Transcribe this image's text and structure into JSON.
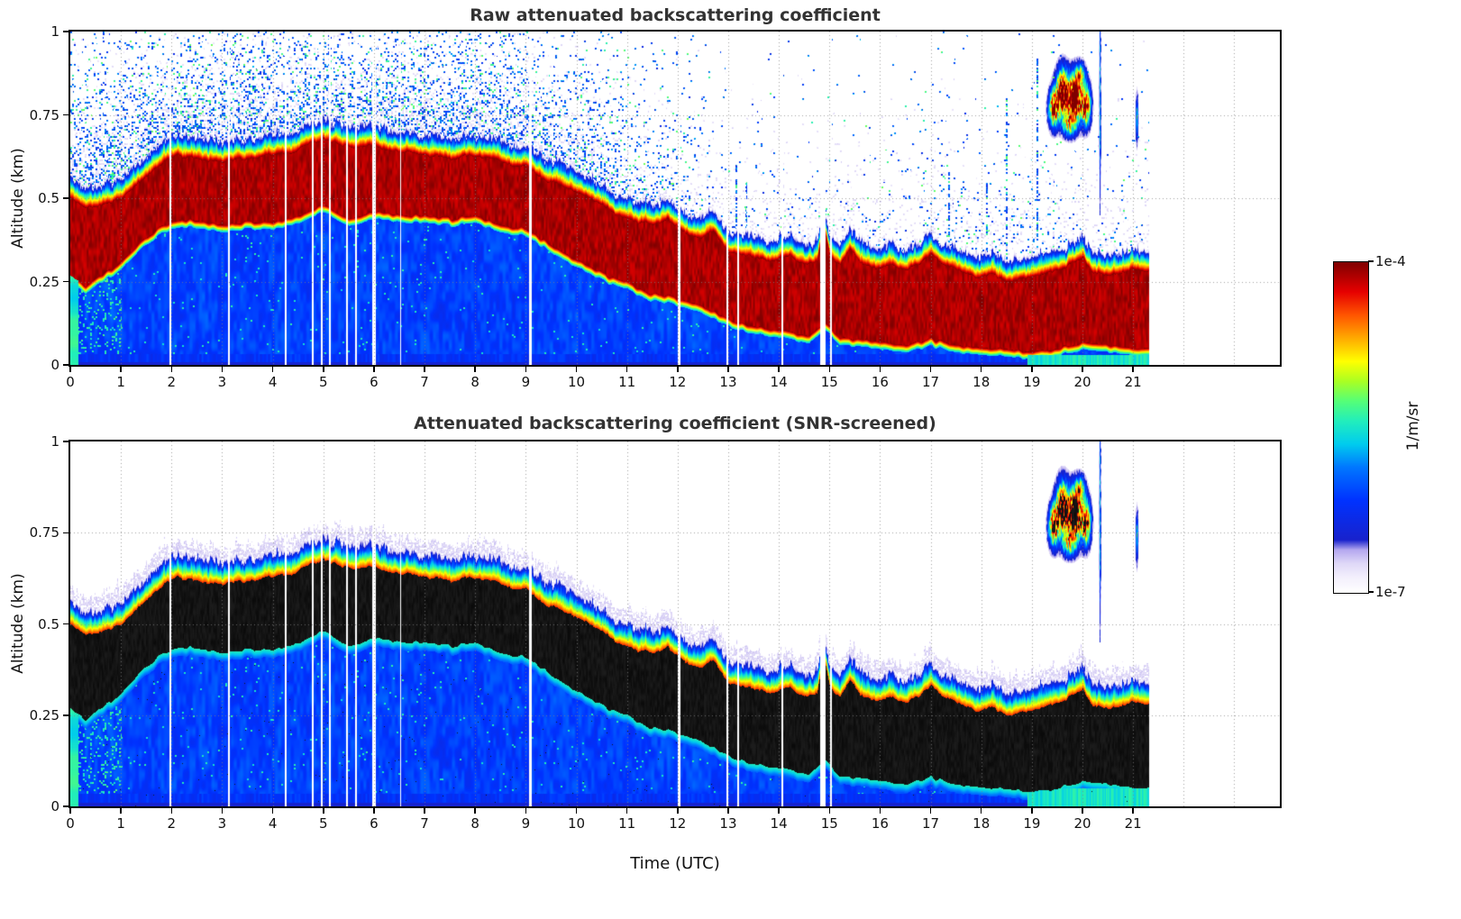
{
  "chart_data": {
    "type": "heatmap",
    "panels": [
      {
        "title": "Raw attenuated backscattering coefficient",
        "screened": false
      },
      {
        "title": "Attenuated backscattering coefficient (SNR-screened)",
        "screened": true
      }
    ],
    "xlabel": "Time (UTC)",
    "ylabel": "Altitude (km)",
    "x_range": [
      0,
      23.9
    ],
    "y_range": [
      0,
      1
    ],
    "x_ticks": [
      0,
      1,
      2,
      3,
      4,
      5,
      6,
      7,
      8,
      9,
      10,
      11,
      12,
      13,
      14,
      15,
      16,
      17,
      18,
      19,
      20,
      21
    ],
    "y_ticks": [
      0,
      0.25,
      0.5,
      0.75,
      1
    ],
    "t_end": 21.3,
    "grid": true,
    "colorbar": {
      "label": "1/m/sr",
      "max": "1e-4",
      "min": "1e-7",
      "scale": "log"
    },
    "cmap_stops": [
      {
        "v": 0.0,
        "c": "#ffffff"
      },
      {
        "v": 0.05,
        "c": "#f2eefc"
      },
      {
        "v": 0.09,
        "c": "#ded7f7"
      },
      {
        "v": 0.13,
        "c": "#b4a7ef"
      },
      {
        "v": 0.16,
        "c": "#1822cc"
      },
      {
        "v": 0.28,
        "c": "#0032ff"
      },
      {
        "v": 0.38,
        "c": "#0077ff"
      },
      {
        "v": 0.45,
        "c": "#00ccee"
      },
      {
        "v": 0.52,
        "c": "#22eebb"
      },
      {
        "v": 0.58,
        "c": "#55ff77"
      },
      {
        "v": 0.64,
        "c": "#aaff22"
      },
      {
        "v": 0.7,
        "c": "#ffff00"
      },
      {
        "v": 0.77,
        "c": "#ffaa00"
      },
      {
        "v": 0.84,
        "c": "#ff5500"
      },
      {
        "v": 0.91,
        "c": "#e60000"
      },
      {
        "v": 1.0,
        "c": "#7f0000"
      }
    ],
    "layer_top": {
      "t": [
        0,
        0.3,
        0.6,
        1.0,
        1.3,
        1.6,
        1.9,
        2.1,
        2.5,
        3.0,
        3.5,
        4.0,
        4.4,
        4.7,
        5.0,
        5.3,
        5.6,
        5.9,
        6.2,
        6.6,
        7.0,
        7.5,
        8.0,
        8.4,
        8.7,
        9.0,
        9.3,
        9.7,
        10.0,
        10.4,
        10.8,
        11.2,
        11.5,
        11.8,
        12.1,
        12.4,
        12.7,
        13.0,
        13.3,
        13.6,
        13.9,
        14.2,
        14.5,
        14.75,
        14.88,
        15.0,
        15.2,
        15.4,
        15.6,
        15.9,
        16.2,
        16.5,
        16.8,
        17.0,
        17.3,
        17.6,
        17.9,
        18.2,
        18.5,
        18.8,
        19.1,
        19.4,
        19.7,
        20.0,
        20.2,
        20.5,
        20.8,
        21.0,
        21.25
      ],
      "z": [
        0.5,
        0.47,
        0.48,
        0.5,
        0.54,
        0.58,
        0.62,
        0.63,
        0.62,
        0.61,
        0.62,
        0.63,
        0.64,
        0.66,
        0.68,
        0.66,
        0.65,
        0.66,
        0.65,
        0.64,
        0.63,
        0.62,
        0.63,
        0.62,
        0.6,
        0.6,
        0.56,
        0.54,
        0.52,
        0.49,
        0.45,
        0.43,
        0.42,
        0.44,
        0.4,
        0.38,
        0.4,
        0.34,
        0.33,
        0.32,
        0.31,
        0.33,
        0.3,
        0.31,
        0.42,
        0.33,
        0.3,
        0.35,
        0.31,
        0.29,
        0.3,
        0.28,
        0.31,
        0.33,
        0.3,
        0.28,
        0.26,
        0.27,
        0.25,
        0.26,
        0.27,
        0.28,
        0.3,
        0.32,
        0.28,
        0.27,
        0.28,
        0.29,
        0.28
      ]
    },
    "layer_bottom": {
      "t": [
        0,
        0.3,
        0.7,
        1.0,
        1.4,
        1.8,
        2.2,
        2.6,
        3.0,
        3.5,
        4.0,
        4.5,
        5.0,
        5.5,
        6.0,
        6.5,
        7.0,
        7.5,
        8.0,
        8.5,
        9.0,
        9.4,
        9.8,
        10.2,
        10.6,
        11.0,
        11.4,
        11.8,
        12.2,
        12.6,
        13.0,
        13.4,
        13.8,
        14.2,
        14.6,
        14.9,
        15.2,
        15.6,
        16.0,
        16.5,
        17.0,
        17.5,
        18.0,
        18.5,
        19.0,
        19.5,
        20.0,
        20.5,
        21.0,
        21.25
      ],
      "z": [
        0.27,
        0.24,
        0.28,
        0.31,
        0.37,
        0.42,
        0.44,
        0.43,
        0.42,
        0.43,
        0.43,
        0.45,
        0.48,
        0.44,
        0.46,
        0.45,
        0.45,
        0.44,
        0.45,
        0.42,
        0.41,
        0.37,
        0.33,
        0.3,
        0.27,
        0.25,
        0.22,
        0.21,
        0.19,
        0.17,
        0.14,
        0.12,
        0.11,
        0.1,
        0.09,
        0.13,
        0.08,
        0.08,
        0.07,
        0.06,
        0.08,
        0.06,
        0.05,
        0.05,
        0.04,
        0.05,
        0.07,
        0.06,
        0.05,
        0.05
      ]
    },
    "gaps": [
      {
        "t": 1.97,
        "w": 0.035
      },
      {
        "t": 3.12,
        "w": 0.04
      },
      {
        "t": 4.24,
        "w": 0.035
      },
      {
        "t": 4.78,
        "w": 0.035
      },
      {
        "t": 4.96,
        "w": 0.03
      },
      {
        "t": 5.12,
        "w": 0.03
      },
      {
        "t": 5.46,
        "w": 0.04
      },
      {
        "t": 5.64,
        "w": 0.03
      },
      {
        "t": 6.0,
        "w": 0.07
      },
      {
        "t": 6.52,
        "w": 0.03
      },
      {
        "t": 9.08,
        "w": 0.05
      },
      {
        "t": 12.02,
        "w": 0.04
      },
      {
        "t": 12.97,
        "w": 0.04
      },
      {
        "t": 13.19,
        "w": 0.03
      },
      {
        "t": 14.06,
        "w": 0.04
      },
      {
        "t": 14.86,
        "w": 0.12
      },
      {
        "t": 15.03,
        "w": 0.035
      }
    ],
    "cloud_blobs": [
      {
        "t": 19.42,
        "z": 0.77,
        "st": 0.07,
        "sz": 0.04,
        "a": 0.95
      },
      {
        "t": 19.6,
        "z": 0.82,
        "st": 0.09,
        "sz": 0.05,
        "a": 1.15
      },
      {
        "t": 19.84,
        "z": 0.8,
        "st": 0.09,
        "sz": 0.05,
        "a": 1.25
      },
      {
        "t": 20.06,
        "z": 0.78,
        "st": 0.07,
        "sz": 0.045,
        "a": 0.95
      },
      {
        "t": 19.72,
        "z": 0.72,
        "st": 0.1,
        "sz": 0.025,
        "a": 0.55
      },
      {
        "t": 19.95,
        "z": 0.875,
        "st": 0.07,
        "sz": 0.025,
        "a": 0.5
      },
      {
        "t": 20.34,
        "z": 0.78,
        "st": 0.012,
        "sz": 0.22,
        "a": 0.45
      },
      {
        "t": 21.07,
        "z": 0.74,
        "st": 0.018,
        "sz": 0.05,
        "a": 0.5
      }
    ],
    "noise_streaks": [
      {
        "t": 13.15,
        "z0": 0.32,
        "z1": 0.6
      },
      {
        "t": 13.35,
        "z0": 0.32,
        "z1": 0.55
      },
      {
        "t": 14.92,
        "z0": 0.3,
        "z1": 0.47
      },
      {
        "t": 17.35,
        "z0": 0.28,
        "z1": 0.58
      },
      {
        "t": 18.1,
        "z0": 0.28,
        "z1": 0.55
      },
      {
        "t": 18.5,
        "z0": 0.25,
        "z1": 0.8
      },
      {
        "t": 19.1,
        "z0": 0.25,
        "z1": 0.92
      }
    ],
    "ground_cyan_from_t": 18.9,
    "left_edge_cyan_until_t": 0.15
  }
}
